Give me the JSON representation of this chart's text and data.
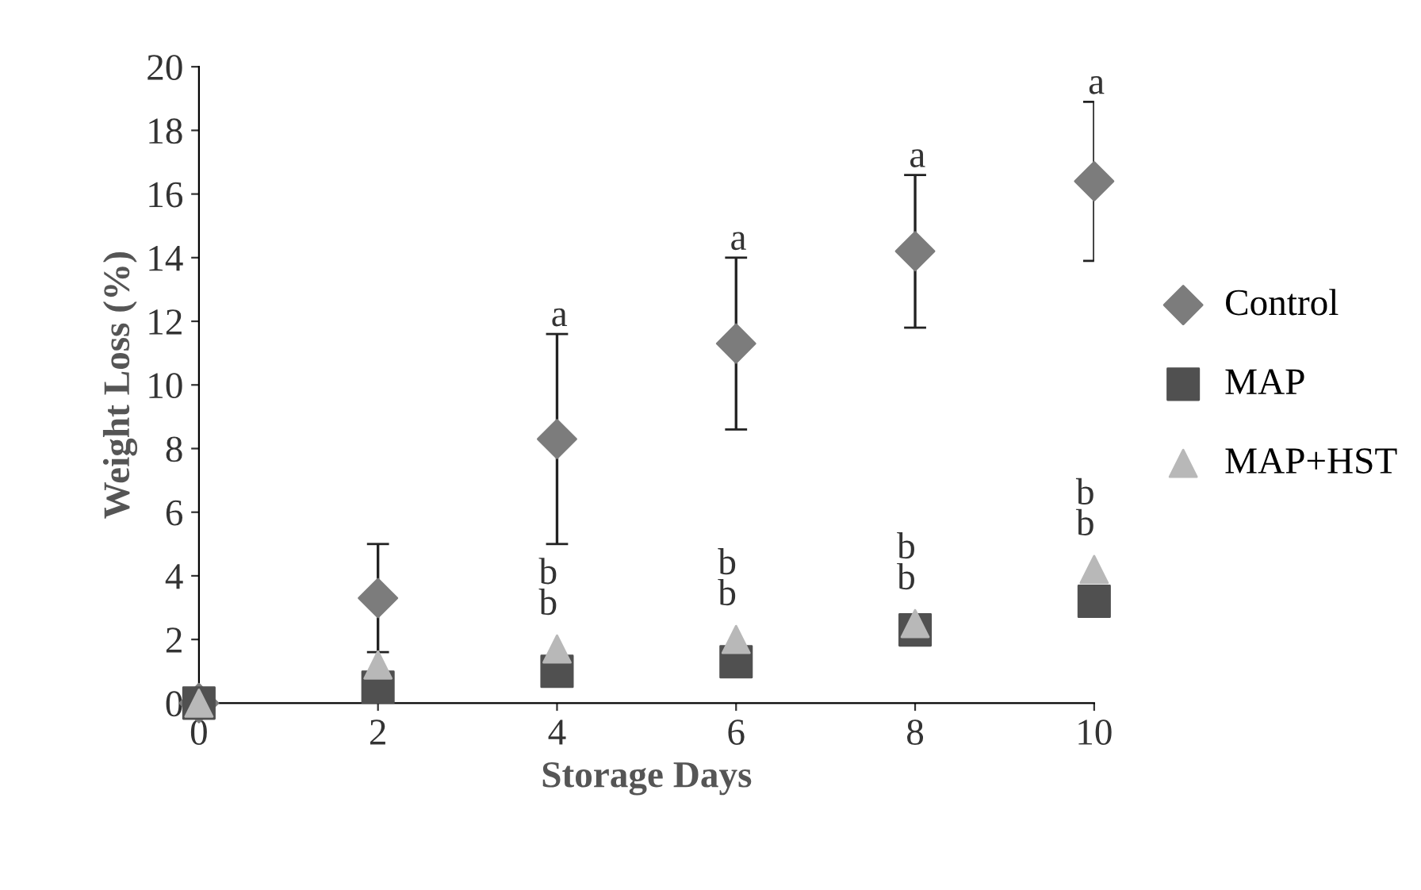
{
  "chart_data": {
    "type": "scatter",
    "xlabel": "Storage Days",
    "ylabel": "Weight Loss (%)",
    "x": [
      0,
      2,
      4,
      6,
      8,
      10
    ],
    "series": [
      {
        "name": "Control",
        "color": "#7c7c7c",
        "marker": "diamond",
        "values": [
          0,
          3.3,
          8.3,
          11.3,
          14.2,
          16.4
        ],
        "errors": [
          null,
          1.7,
          3.3,
          2.7,
          2.4,
          2.5
        ]
      },
      {
        "name": "MAP",
        "color": "#505050",
        "marker": "square",
        "values": [
          0,
          0.5,
          1.0,
          1.3,
          2.3,
          3.2
        ]
      },
      {
        "name": "MAP+HST",
        "color": "#b8b8b8",
        "marker": "triangle",
        "values": [
          0,
          1.2,
          1.7,
          2.0,
          2.5,
          4.2
        ]
      }
    ],
    "annotations": [
      {
        "text": "a",
        "x": 4,
        "y": 11.6
      },
      {
        "text": "a",
        "x": 6,
        "y": 11.3
      },
      {
        "text": "a",
        "x": 8,
        "y": 14.2
      },
      {
        "text": "a",
        "x": 10,
        "y": 16.4
      },
      {
        "text": "b",
        "x": 4,
        "y": 1.7
      },
      {
        "text": "b",
        "x": 4,
        "y": 1.0
      },
      {
        "text": "b",
        "x": 6,
        "y": 2.0
      },
      {
        "text": "b",
        "x": 6,
        "y": 1.3
      },
      {
        "text": "b",
        "x": 8,
        "y": 2.5
      },
      {
        "text": "b",
        "x": 8,
        "y": 2.3
      },
      {
        "text": "b",
        "x": 10,
        "y": 4.2
      },
      {
        "text": "b",
        "x": 10,
        "y": 3.2
      }
    ],
    "xlim": [
      0,
      10
    ],
    "xticks": [
      0,
      2,
      4,
      6,
      8,
      10
    ],
    "ylim": [
      0,
      20
    ],
    "yticks": [
      0,
      2,
      4,
      6,
      8,
      10,
      12,
      14,
      16,
      18,
      20
    ],
    "grid": false,
    "legend": "right"
  }
}
